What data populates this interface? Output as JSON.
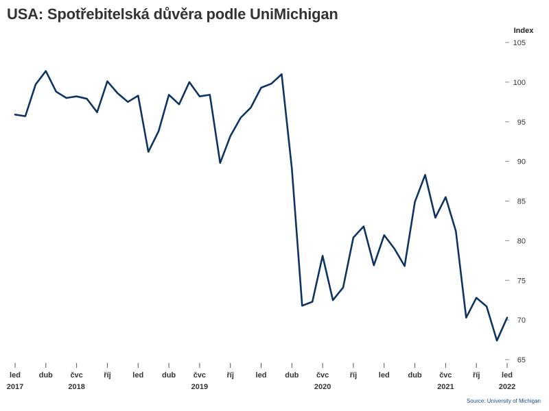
{
  "title": "USA: Spotřebitelská důvěra podle UniMichigan",
  "source": "Source: University of Michigan",
  "chart_data": {
    "type": "line",
    "title": "USA: Spotřebitelská důvěra podle UniMichigan",
    "ylabel": "Index",
    "xlabel": "",
    "ylim": [
      65,
      105
    ],
    "yticks": [
      65,
      70,
      75,
      80,
      85,
      90,
      95,
      100,
      105
    ],
    "grid": false,
    "line_color": "#0d3461",
    "x_ticks": [
      {
        "index": 0,
        "month": "led",
        "year": "2017"
      },
      {
        "index": 3,
        "month": "dub",
        "year": ""
      },
      {
        "index": 6,
        "month": "čvc",
        "year": "2018"
      },
      {
        "index": 9,
        "month": "říj",
        "year": ""
      },
      {
        "index": 12,
        "month": "led",
        "year": ""
      },
      {
        "index": 15,
        "month": "dub",
        "year": ""
      },
      {
        "index": 18,
        "month": "čvc",
        "year": "2019"
      },
      {
        "index": 21,
        "month": "říj",
        "year": ""
      },
      {
        "index": 24,
        "month": "led",
        "year": ""
      },
      {
        "index": 27,
        "month": "dub",
        "year": ""
      },
      {
        "index": 30,
        "month": "čvc",
        "year": "2020"
      },
      {
        "index": 33,
        "month": "říj",
        "year": ""
      },
      {
        "index": 36,
        "month": "led",
        "year": ""
      },
      {
        "index": 39,
        "month": "dub",
        "year": ""
      },
      {
        "index": 42,
        "month": "čvc",
        "year": "2021"
      },
      {
        "index": 45,
        "month": "říj",
        "year": ""
      },
      {
        "index": 48,
        "month": "led",
        "year": "2022"
      }
    ],
    "series": [
      {
        "values": [
          95.9,
          95.7,
          99.7,
          101.4,
          98.8,
          98.0,
          98.2,
          97.9,
          96.2,
          100.1,
          98.6,
          97.5,
          98.3,
          91.2,
          93.8,
          98.4,
          97.2,
          100.0,
          98.2,
          98.4,
          89.8,
          93.2,
          95.5,
          96.8,
          99.3,
          99.8,
          101.0,
          89.1,
          71.8,
          72.3,
          78.1,
          72.5,
          74.1,
          80.4,
          81.8,
          76.9,
          80.7,
          79.0,
          76.8,
          84.9,
          88.3,
          82.9,
          85.5,
          81.2,
          70.3,
          72.8,
          71.7,
          67.4,
          70.3
        ]
      }
    ]
  }
}
